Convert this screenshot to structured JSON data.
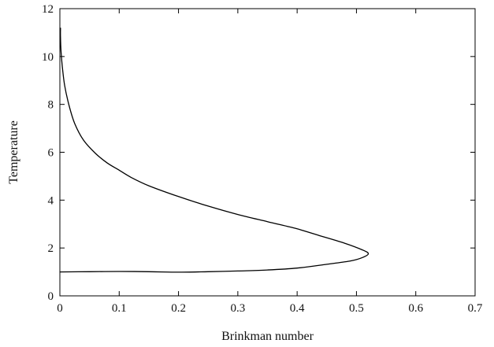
{
  "chart_data": {
    "type": "line",
    "title": "",
    "xlabel": "Brinkman number",
    "ylabel": "Temperature",
    "xlim": [
      0,
      0.7
    ],
    "ylim": [
      0,
      12
    ],
    "xticks": [
      "0",
      "0.1",
      "0.2",
      "0.3",
      "0.4",
      "0.5",
      "0.6",
      "0.7"
    ],
    "yticks": [
      "0",
      "2",
      "4",
      "6",
      "8",
      "10",
      "12"
    ],
    "grid": false,
    "line_color": "#000000",
    "series": [
      {
        "points": [
          [
            0.0,
            1.0
          ],
          [
            0.05,
            1.01
          ],
          [
            0.1,
            1.02
          ],
          [
            0.15,
            1.01
          ],
          [
            0.2,
            0.99
          ],
          [
            0.25,
            1.01
          ],
          [
            0.3,
            1.04
          ],
          [
            0.35,
            1.08
          ],
          [
            0.4,
            1.16
          ],
          [
            0.45,
            1.32
          ],
          [
            0.49,
            1.46
          ],
          [
            0.51,
            1.6
          ],
          [
            0.52,
            1.76
          ],
          [
            0.51,
            1.92
          ],
          [
            0.48,
            2.2
          ],
          [
            0.44,
            2.5
          ],
          [
            0.4,
            2.8
          ],
          [
            0.35,
            3.1
          ],
          [
            0.3,
            3.4
          ],
          [
            0.25,
            3.75
          ],
          [
            0.2,
            4.15
          ],
          [
            0.15,
            4.6
          ],
          [
            0.12,
            4.95
          ],
          [
            0.1,
            5.25
          ],
          [
            0.08,
            5.55
          ],
          [
            0.06,
            5.95
          ],
          [
            0.04,
            6.5
          ],
          [
            0.025,
            7.2
          ],
          [
            0.015,
            8.0
          ],
          [
            0.008,
            8.8
          ],
          [
            0.004,
            9.6
          ],
          [
            0.002,
            10.2
          ],
          [
            0.001,
            10.8
          ],
          [
            0.001,
            11.2
          ]
        ]
      }
    ]
  }
}
